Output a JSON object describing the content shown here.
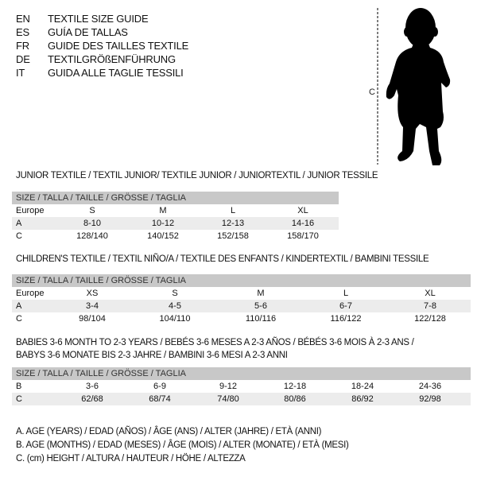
{
  "languages": [
    {
      "code": "EN",
      "title": "TEXTILE SIZE GUIDE"
    },
    {
      "code": "ES",
      "title": "GUÍA DE TALLAS"
    },
    {
      "code": "FR",
      "title": "GUIDE DES TAILLES TEXTILE"
    },
    {
      "code": "DE",
      "title": "TEXTILGRÖßENFÜHRUNG"
    },
    {
      "code": "IT",
      "title": "GUIDA ALLE TAGLIE TESSILI"
    }
  ],
  "figure": {
    "measure_label": "C"
  },
  "junior": {
    "title": "JUNIOR TEXTILE / TEXTIL JUNIOR/ TEXTILE JUNIOR / JUNIORTEXTIL / JUNIOR TESSILE",
    "header": "SIZE / TALLA / TAILLE / GRÖSSE / TAGLIA",
    "rows": [
      {
        "label": "Europe",
        "values": [
          "S",
          "M",
          "L",
          "XL"
        ]
      },
      {
        "label": "A",
        "values": [
          "8-10",
          "10-12",
          "12-13",
          "14-16"
        ]
      },
      {
        "label": "C",
        "values": [
          "128/140",
          "140/152",
          "152/158",
          "158/170"
        ]
      }
    ]
  },
  "children": {
    "title": "CHILDREN'S TEXTILE / TEXTIL NIÑO/A / TEXTILE DES ENFANTS / KINDERTEXTIL / BAMBINI TESSILE",
    "header": "SIZE / TALLA / TAILLE / GRÖSSE / TAGLIA",
    "rows": [
      {
        "label": "Europe",
        "values": [
          "XS",
          "S",
          "M",
          "L",
          "XL"
        ]
      },
      {
        "label": "A",
        "values": [
          "3-4",
          "4-5",
          "5-6",
          "6-7",
          "7-8"
        ]
      },
      {
        "label": "C",
        "values": [
          "98/104",
          "104/110",
          "110/116",
          "116/122",
          "122/128"
        ]
      }
    ]
  },
  "babies": {
    "title_line1": "BABIES 3-6 MONTH TO 2-3 YEARS / BEBÉS 3-6 MESES A 2-3 AÑOS / BÉBÉS 3-6 MOIS À 2-3 ANS /",
    "title_line2": "BABYS 3-6 MONATE BIS 2-3 JAHRE / BAMBINI 3-6 MESI A 2-3 ANNI",
    "header": "SIZE / TALLA / TAILLE / GRÖSSE / TAGLIA",
    "rows": [
      {
        "label": "B",
        "values": [
          "3-6",
          "6-9",
          "9-12",
          "12-18",
          "18-24",
          "24-36"
        ]
      },
      {
        "label": "C",
        "values": [
          "62/68",
          "68/74",
          "74/80",
          "80/86",
          "86/92",
          "92/98"
        ]
      }
    ]
  },
  "legend": [
    "A. AGE (YEARS) / EDAD (AÑOS) / ÂGE (ANS) / ALTER (JAHRE) / ETÀ (ANNI)",
    "B. AGE (MONTHS) / EDAD (MESES) / ÂGE (MOIS) / ALTER (MONATE) / ETÀ (MESI)",
    "C. (cm) HEIGHT / ALTURA / HAUTEUR / HÖHE / ALTEZZA"
  ]
}
